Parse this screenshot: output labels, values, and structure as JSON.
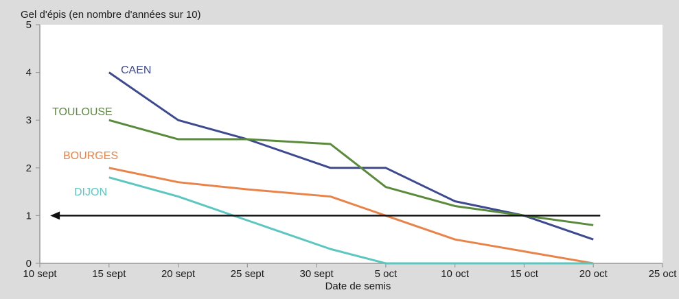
{
  "chart_data": {
    "type": "line",
    "title": "",
    "ylabel": "Gel d'épis (en nombre d'années sur 10)",
    "xlabel": "Date de semis",
    "x_ticks": [
      "10 sept",
      "15 sept",
      "20 sept",
      "25 sept",
      "30 sept",
      "5 oct",
      "10 oct",
      "15 oct",
      "20 oct",
      "25 oct"
    ],
    "xlim": [
      0,
      9
    ],
    "ylim": [
      0,
      5
    ],
    "y_ticks": [
      "0",
      "1",
      "2",
      "3",
      "4",
      "5"
    ],
    "grid": false,
    "colors": {
      "background": "#dcdcdc",
      "plot_background": "#ffffff",
      "axis": "#999999",
      "arrow": "#111111"
    },
    "series": [
      {
        "name": "CAEN",
        "color": "#3d4a8f",
        "x": [
          1,
          2,
          3,
          3.2,
          4.2,
          5,
          6,
          7,
          8
        ],
        "y": [
          4,
          3,
          2.6,
          2.5,
          2,
          2,
          1.3,
          1,
          0.5
        ]
      },
      {
        "name": "TOULOUSE",
        "color": "#5a8a3c",
        "x": [
          1,
          2,
          3,
          4.2,
          5,
          6,
          7,
          8
        ],
        "y": [
          3,
          2.6,
          2.6,
          2.5,
          1.6,
          1.2,
          1,
          0.8
        ]
      },
      {
        "name": "BOURGES",
        "color": "#e8844a",
        "x": [
          1,
          2,
          3,
          4.2,
          5,
          6,
          7,
          8
        ],
        "y": [
          2,
          1.7,
          1.55,
          1.4,
          1,
          0.5,
          0.25,
          0
        ]
      },
      {
        "name": "DIJON",
        "color": "#5cc6c0",
        "x": [
          1,
          2,
          3,
          4.2,
          5,
          6,
          7,
          8
        ],
        "y": [
          1.8,
          1.4,
          0.9,
          0.3,
          0,
          0,
          0,
          0
        ]
      }
    ],
    "annotations": [
      {
        "type": "arrow",
        "y": 1,
        "x_from": 8.1,
        "x_to": 0.15
      }
    ]
  }
}
